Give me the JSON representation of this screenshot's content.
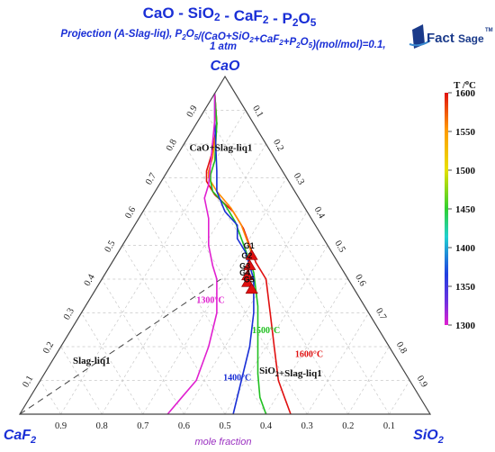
{
  "title": "CaO - SiO2 - CaF2 - P2O5",
  "subtitle_line1": "Projection (A-Slag-liq), P2O5/(CaO+SiO2+CaF2+P2O5)(mol/mol)=0.1,",
  "subtitle_line2": "1 atm",
  "logo": {
    "brand_fact": "Fact",
    "brand_sage": "Sage",
    "tm": "TM"
  },
  "axis_caption": "mole fraction",
  "colorbar": {
    "title": "T /°C",
    "ticks": [
      1600,
      1550,
      1500,
      1450,
      1400,
      1350,
      1300
    ]
  },
  "chart_data": {
    "type": "ternary",
    "vertices": {
      "top": "CaO",
      "left": "CaF2",
      "right": "SiO2"
    },
    "grid": true,
    "tick_values": [
      0.1,
      0.2,
      0.3,
      0.4,
      0.5,
      0.6,
      0.7,
      0.8,
      0.9
    ],
    "regions": [
      {
        "label": "CaO+Slag-liq1",
        "CaO": 0.78,
        "SiO2": 0.1
      },
      {
        "label": "Slag-liq1",
        "CaO": 0.15,
        "SiO2": 0.1
      },
      {
        "label": "SiO2+Slag-liq1",
        "CaO": 0.12,
        "SiO2": 0.6
      }
    ],
    "isotherm_labels": [
      {
        "text": "1300°C",
        "color": "#e020d0",
        "CaO": 0.33,
        "SiO2": 0.3
      },
      {
        "text": "1400°C",
        "color": "#1a2fd6",
        "CaO": 0.1,
        "SiO2": 0.48
      },
      {
        "text": "1500°C",
        "color": "#20c020",
        "CaO": 0.24,
        "SiO2": 0.48
      },
      {
        "text": "1600°C",
        "color": "#e01010",
        "CaO": 0.17,
        "SiO2": 0.62
      }
    ],
    "isotherms": [
      {
        "T": 1600,
        "color": "#e01010",
        "points": [
          [
            0.95,
            0.0
          ],
          [
            0.86,
            0.05
          ],
          [
            0.78,
            0.08
          ],
          [
            0.74,
            0.09
          ],
          [
            0.72,
            0.095
          ],
          [
            0.71,
            0.1
          ],
          [
            0.69,
            0.11
          ],
          [
            0.65,
            0.15
          ],
          [
            0.6,
            0.22
          ],
          [
            0.55,
            0.27
          ],
          [
            0.5,
            0.31
          ],
          [
            0.45,
            0.35
          ],
          [
            0.4,
            0.4
          ],
          [
            0.3,
            0.46
          ],
          [
            0.2,
            0.52
          ],
          [
            0.1,
            0.58
          ],
          [
            0.05,
            0.62
          ],
          [
            0.0,
            0.66
          ]
        ]
      },
      {
        "T": 1550,
        "color": "#ff8a00",
        "points": [
          [
            0.95,
            0.0
          ],
          [
            0.86,
            0.05
          ],
          [
            0.76,
            0.09
          ],
          [
            0.72,
            0.1
          ],
          [
            0.7,
            0.11
          ],
          [
            0.66,
            0.15
          ],
          [
            0.61,
            0.21
          ],
          [
            0.56,
            0.26
          ],
          [
            0.51,
            0.3
          ],
          [
            0.46,
            0.34
          ]
        ]
      },
      {
        "T": 1500,
        "color": "#20c020",
        "points": [
          [
            0.95,
            0.0
          ],
          [
            0.86,
            0.05
          ],
          [
            0.75,
            0.1
          ],
          [
            0.71,
            0.11
          ],
          [
            0.69,
            0.12
          ],
          [
            0.66,
            0.14
          ],
          [
            0.62,
            0.19
          ],
          [
            0.57,
            0.24
          ],
          [
            0.52,
            0.28
          ],
          [
            0.47,
            0.32
          ],
          [
            0.42,
            0.36
          ],
          [
            0.32,
            0.42
          ],
          [
            0.22,
            0.47
          ],
          [
            0.12,
            0.52
          ],
          [
            0.05,
            0.56
          ],
          [
            0.0,
            0.6
          ]
        ]
      },
      {
        "T": 1400,
        "color": "#1a2fd6",
        "points": [
          [
            0.95,
            0.0
          ],
          [
            0.87,
            0.04
          ],
          [
            0.72,
            0.12
          ],
          [
            0.7,
            0.13
          ],
          [
            0.66,
            0.15
          ],
          [
            0.6,
            0.2
          ],
          [
            0.56,
            0.25
          ],
          [
            0.52,
            0.27
          ],
          [
            0.48,
            0.31
          ],
          [
            0.44,
            0.34
          ],
          [
            0.4,
            0.37
          ],
          [
            0.3,
            0.42
          ],
          [
            0.2,
            0.46
          ],
          [
            0.1,
            0.49
          ],
          [
            0.0,
            0.52
          ]
        ]
      },
      {
        "T": 1300,
        "color": "#e020d0",
        "points": [
          [
            0.95,
            0.0
          ],
          [
            0.87,
            0.04
          ],
          [
            0.68,
            0.12
          ],
          [
            0.64,
            0.13
          ],
          [
            0.58,
            0.17
          ],
          [
            0.5,
            0.21
          ],
          [
            0.44,
            0.25
          ],
          [
            0.4,
            0.28
          ],
          [
            0.3,
            0.33
          ],
          [
            0.2,
            0.36
          ],
          [
            0.1,
            0.38
          ],
          [
            0.05,
            0.37
          ],
          [
            0.0,
            0.36
          ]
        ]
      }
    ],
    "points": [
      {
        "label": "G1",
        "CaO": 0.47,
        "SiO2": 0.33
      },
      {
        "label": "G2",
        "CaO": 0.44,
        "SiO2": 0.34
      },
      {
        "label": "G3",
        "CaO": 0.41,
        "SiO2": 0.35
      },
      {
        "label": "G4",
        "CaO": 0.39,
        "SiO2": 0.36
      },
      {
        "label": "G5",
        "CaO": 0.37,
        "SiO2": 0.38
      }
    ],
    "dashed_line": [
      [
        0.0,
        0.0
      ],
      [
        0.4,
        0.29
      ]
    ]
  }
}
